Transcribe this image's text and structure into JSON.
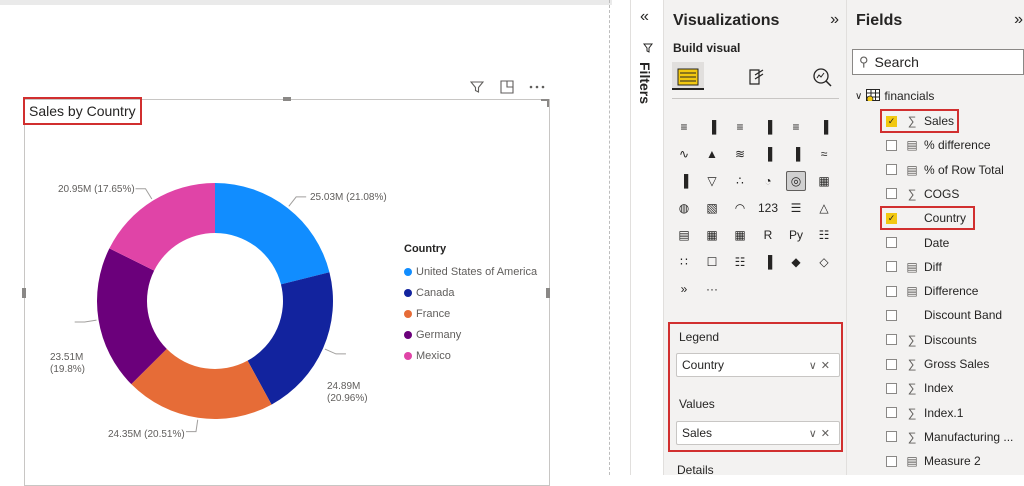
{
  "visual": {
    "title": "Sales by Country",
    "header_icons": [
      "filter-icon",
      "focus-mode-icon",
      "more-options-icon"
    ]
  },
  "chart_data": {
    "type": "pie",
    "variant": "donut",
    "title": "Sales by Country",
    "legend_title": "Country",
    "legend_position": "right",
    "slices": [
      {
        "name": "United States of America",
        "value": 25.03,
        "unit": "M",
        "percent": 21.08,
        "label": "25.03M (21.08%)",
        "color": "#118dff"
      },
      {
        "name": "Canada",
        "value": 24.89,
        "unit": "M",
        "percent": 20.96,
        "label_line1": "24.89M",
        "label_line2": "(20.96%)",
        "color": "#12239e"
      },
      {
        "name": "France",
        "value": 24.35,
        "unit": "M",
        "percent": 20.51,
        "label": "24.35M (20.51%)",
        "color": "#e66c37"
      },
      {
        "name": "Germany",
        "value": 23.51,
        "unit": "M",
        "percent": 19.8,
        "label_line1": "23.51M",
        "label_line2": "(19.8%)",
        "color": "#6b007b"
      },
      {
        "name": "Mexico",
        "value": 20.95,
        "unit": "M",
        "percent": 17.65,
        "label": "20.95M (17.65%)",
        "color": "#e044a7"
      }
    ]
  },
  "filters_pane": {
    "label": "Filters"
  },
  "visualizations": {
    "title": "Visualizations",
    "build_label": "Build visual",
    "more_label": "···",
    "icons": [
      "stacked-bar-chart-icon",
      "stacked-column-chart-icon",
      "clustered-bar-chart-icon",
      "clustered-column-chart-icon",
      "100-bar-chart-icon",
      "100-column-chart-icon",
      "line-chart-icon",
      "area-chart-icon",
      "stacked-area-chart-icon",
      "line-column-chart-icon",
      "line-clustered-column-icon",
      "ribbon-chart-icon",
      "waterfall-chart-icon",
      "funnel-chart-icon",
      "scatter-chart-icon",
      "pie-chart-icon",
      "donut-chart-icon",
      "treemap-icon",
      "map-icon",
      "filled-map-icon",
      "gauge-icon",
      "card-icon",
      "multi-row-card-icon",
      "kpi-icon",
      "slicer-icon",
      "table-icon",
      "matrix-icon",
      "r-visual-icon",
      "python-visual-icon",
      "key-influencers-icon",
      "decomposition-tree-icon",
      "qa-icon",
      "smart-narrative-icon",
      "paginated-report-icon",
      "arcgis-map-icon",
      "power-apps-icon",
      "power-automate-icon"
    ],
    "icon_glyphs": [
      "≡",
      "▐",
      "≡",
      "▐",
      "≡",
      "▐",
      "∿",
      "▲",
      "≋",
      "▐",
      "▐",
      "≈",
      "▐",
      "▽",
      "∴",
      "◔",
      "◎",
      "▦",
      "◍",
      "▧",
      "◠",
      "123",
      "☰",
      "△",
      "▤",
      "▦",
      "▦",
      "R",
      "Py",
      "☷",
      "∷",
      "☐",
      "☷",
      "▐",
      "◆",
      "◇",
      "»"
    ],
    "wells": [
      {
        "label": "Legend",
        "value": "Country"
      },
      {
        "label": "Values",
        "value": "Sales"
      }
    ],
    "details_label": "Details"
  },
  "fields": {
    "title": "Fields",
    "search_placeholder": "Search",
    "table_name": "financials",
    "items": [
      {
        "name": "Sales",
        "type": "sum",
        "checked": true
      },
      {
        "name": "% difference",
        "type": "calc",
        "checked": false
      },
      {
        "name": "% of Row Total",
        "type": "calc",
        "checked": false
      },
      {
        "name": "COGS",
        "type": "sum",
        "checked": false
      },
      {
        "name": "Country",
        "type": "text",
        "checked": true
      },
      {
        "name": "Date",
        "type": "text",
        "checked": false
      },
      {
        "name": "Diff",
        "type": "calc",
        "checked": false
      },
      {
        "name": "Difference",
        "type": "calc",
        "checked": false
      },
      {
        "name": "Discount Band",
        "type": "text",
        "checked": false
      },
      {
        "name": "Discounts",
        "type": "sum",
        "checked": false
      },
      {
        "name": "Gross Sales",
        "type": "sum",
        "checked": false
      },
      {
        "name": "Index",
        "type": "sum",
        "checked": false
      },
      {
        "name": "Index.1",
        "type": "sum",
        "checked": false
      },
      {
        "name": "Manufacturing ...",
        "type": "sum",
        "checked": false
      },
      {
        "name": "Measure 2",
        "type": "calc",
        "checked": false
      }
    ]
  }
}
